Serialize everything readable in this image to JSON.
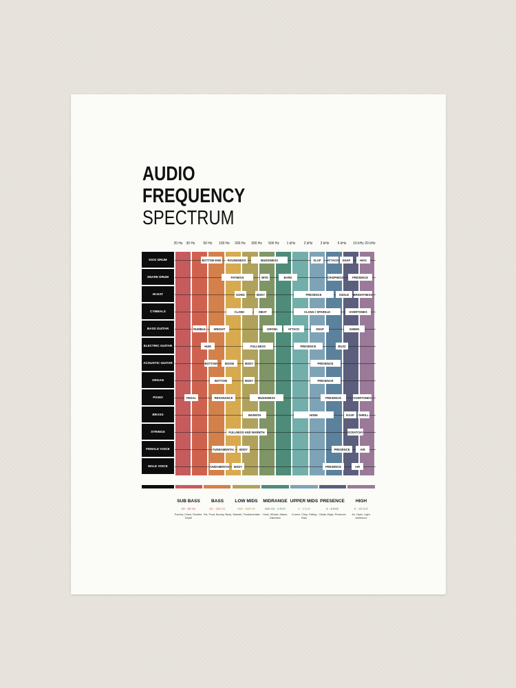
{
  "title": {
    "line1": "AUDIO",
    "line2": "FREQUENCY",
    "line3": "SPECTRUM"
  },
  "frequencies": [
    "20 Hz",
    "30 Hz",
    "50 Hz",
    "100 Hz",
    "200 Hz",
    "300 Hz",
    "500 Hz",
    "1 kHz",
    "2 kHz",
    "3 kHz",
    "5 kHz",
    "10 kHz",
    "20 kHz"
  ],
  "band_colors": [
    "#c65b5e",
    "#cf624f",
    "#d4804a",
    "#d7aa4f",
    "#b0a25c",
    "#7f9566",
    "#4f8b79",
    "#72aeaa",
    "#7ea3b6",
    "#5b819c",
    "#5c5e7d",
    "#9b7999"
  ],
  "instruments": [
    {
      "name": "KICK DRUM",
      "tags": [
        "BOTTOM END",
        "ROUNDNESS",
        "MUDDINESS",
        "SLAP",
        "ATTACK",
        "SNAP",
        "HISS"
      ]
    },
    {
      "name": "SNARE DRUM",
      "tags": [
        "FATNESS",
        "BITE",
        "BARK",
        "CRISPNESS",
        "PRESENCE"
      ]
    },
    {
      "name": "HI-HAT",
      "tags": [
        "GONG",
        "BODY",
        "PRESENCE",
        "SIZZLE",
        "BRIGHTNESS"
      ]
    },
    {
      "name": "CYMBALS",
      "tags": [
        "CLANK",
        "MEAT",
        "CLANG / SPARKLE",
        "OVERTONES"
      ]
    },
    {
      "name": "BASS GUITAR",
      "tags": [
        "RUMBLE",
        "WEIGHT",
        "GROWL",
        "ATTACK",
        "SNAP",
        "SHEEN"
      ]
    },
    {
      "name": "ELECTRIC GUITAR",
      "tags": [
        "HUM",
        "FULLNESS",
        "PRESENCE",
        "BUZZ"
      ]
    },
    {
      "name": "ACOUSTIC GUITAR",
      "tags": [
        "BOTTOM",
        "BOOM",
        "BODY",
        "PRESENCE"
      ]
    },
    {
      "name": "ORGAN",
      "tags": [
        "BOTTOM",
        "BODY",
        "PRESENCE"
      ]
    },
    {
      "name": "PIANO",
      "tags": [
        "PEDAL",
        "RESONANCE",
        "MUDDINESS",
        "PRESENCE",
        "OVERTONES"
      ]
    },
    {
      "name": "BRASS",
      "tags": [
        "WARMTH",
        "HONK",
        "RASP",
        "SHRILL"
      ]
    },
    {
      "name": "STRINGS",
      "tags": [
        "FULLNESS AND WARMTH",
        "SCRATCHY"
      ]
    },
    {
      "name": "FEMALE VOICE",
      "tags": [
        "FUNDAMENTAL",
        "BODY",
        "PRESENCE",
        "AIR"
      ]
    },
    {
      "name": "MALE VOICE",
      "tags": [
        "FUNDAMENTAL",
        "BODY",
        "PRESENCE",
        "AIR"
      ]
    }
  ],
  "legend_colors": [
    "#0d0d0d",
    "#c65b5e",
    "#d4804a",
    "#b0a25c",
    "#4f8b79",
    "#7ea3b6",
    "#5c5e7d",
    "#9b7999"
  ],
  "ranges": [
    {
      "name": "SUB BASS",
      "range": "20 - 60 Hz",
      "desc": "Punchy, Chest, Rumble, Depth",
      "color": "#c65b5e"
    },
    {
      "name": "BASS",
      "range": "60 - 250 Hz",
      "desc": "Fat, Thud, Boomy, Body",
      "color": "#d4804a"
    },
    {
      "name": "LOW MIDS",
      "range": "250 - 500 Hz",
      "desc": "Warmth, Fundamentals",
      "color": "#b0a25c"
    },
    {
      "name": "MIDRANGE",
      "range": "500 Hz - 2 kHz",
      "desc": "Honk, Whack, Attack, Distortion",
      "color": "#4f8b79"
    },
    {
      "name": "UPPER MIDS",
      "range": "2 - 4 kHz",
      "desc": "Crunch, Crisp, Falling Rain",
      "color": "#7ea3b6"
    },
    {
      "name": "PRESENCE",
      "range": "4 - 6 kHz",
      "desc": "Clarity, Edge, Presence",
      "color": "#5c5e7d"
    },
    {
      "name": "HIGH",
      "range": "6 - 20 kHz",
      "desc": "Air, Open, Light, Ambience",
      "color": "#9b7999"
    }
  ]
}
